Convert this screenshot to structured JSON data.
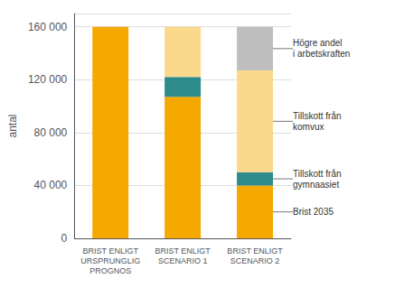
{
  "chart_data": {
    "type": "bar",
    "stacked": true,
    "categories": [
      "BRIST ENLIGT\nURSPRUNGLIG\nPROGNOS",
      "BRIST ENLIGT\nSCENARIO 1",
      "BRIST ENLIGT\nSCENARIO 2"
    ],
    "series": [
      {
        "name": "Brist 2035",
        "color": "#F5A800",
        "values": [
          160000,
          107000,
          40000
        ]
      },
      {
        "name": "Tillskott från\ngymnaasiet",
        "color": "#2E8B8B",
        "values": [
          0,
          15000,
          10000
        ]
      },
      {
        "name": "Tillskott från\nkomvux",
        "color": "#FAD88C",
        "values": [
          0,
          38000,
          77000
        ]
      },
      {
        "name": "Högre andel\ni arbetskraften",
        "color": "#BEBEBE",
        "values": [
          0,
          0,
          33000
        ]
      }
    ],
    "ylabel": "antal",
    "ylim": [
      0,
      170000
    ],
    "yticks": [
      0,
      {
        "value": 40000,
        "label": "40 000"
      },
      {
        "value": 80000,
        "label": "80 000"
      },
      {
        "value": 120000,
        "label": "120 000"
      },
      {
        "value": 160000,
        "label": "160 000"
      }
    ],
    "grid": true
  }
}
